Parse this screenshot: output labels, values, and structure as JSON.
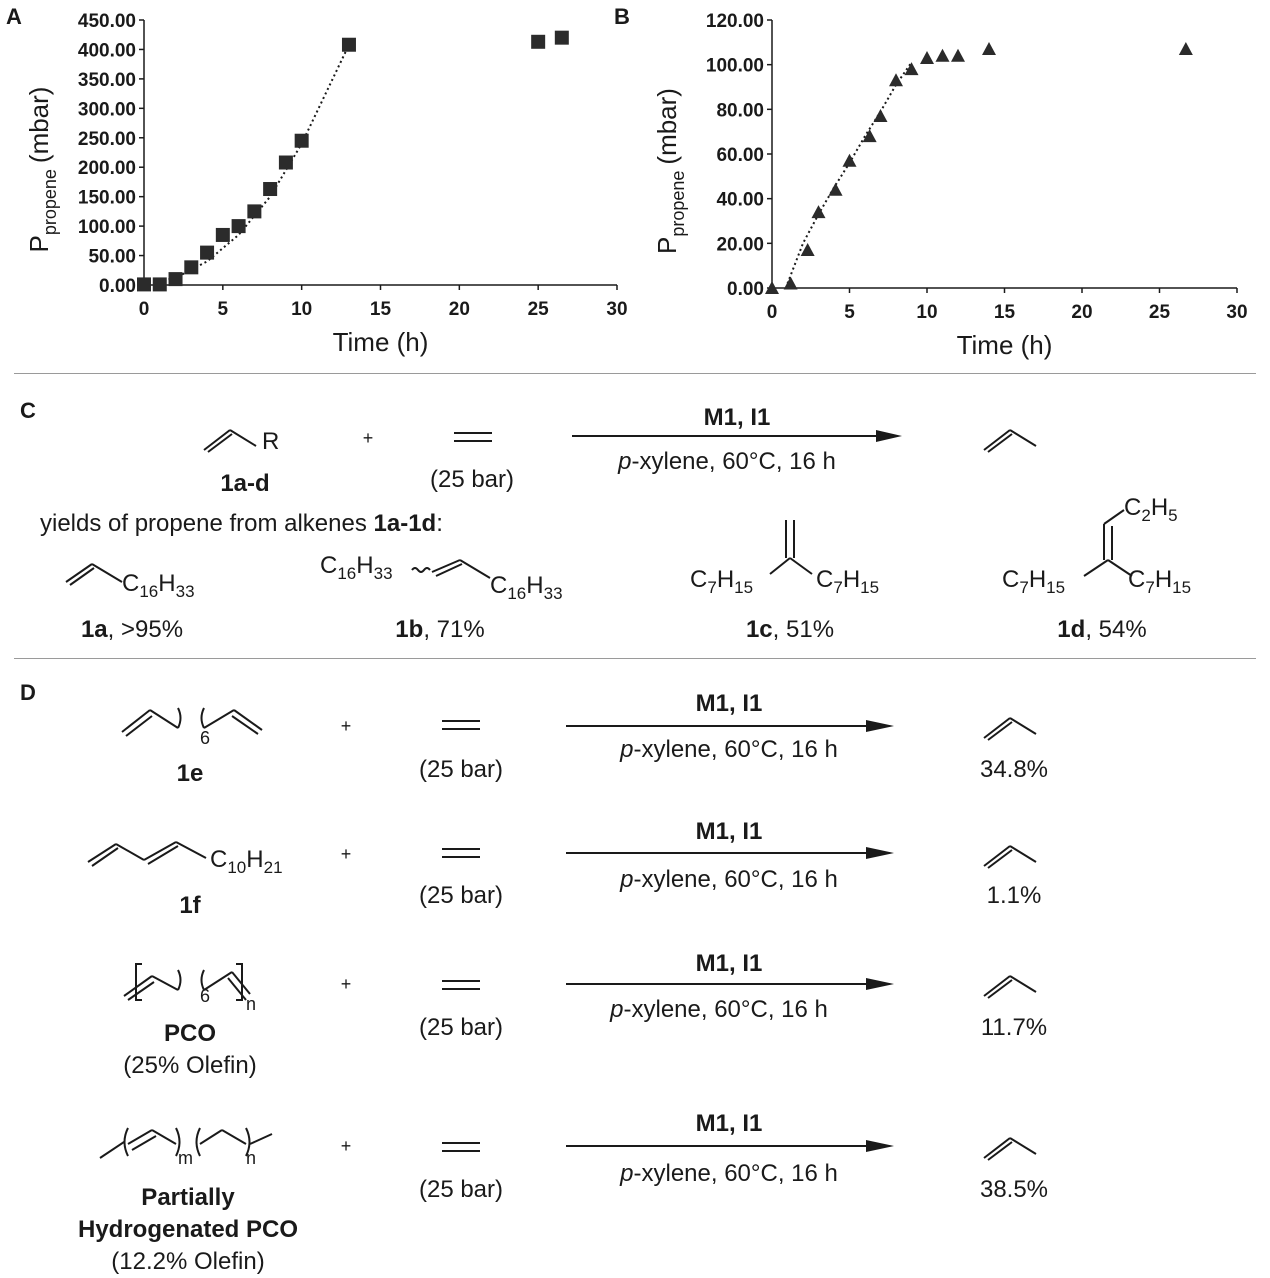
{
  "panels": {
    "a": "A",
    "b": "B",
    "c": "C",
    "d": "D"
  },
  "chart_data": [
    {
      "type": "scatter",
      "panel": "A",
      "xlabel": "Time (h)",
      "ylabel_main": "P",
      "ylabel_sub": "propene",
      "ylabel_unit": "(mbar)",
      "xlim": [
        0,
        30
      ],
      "ylim": [
        0,
        450
      ],
      "xticks": [
        "0",
        "5",
        "10",
        "15",
        "20",
        "25",
        "30"
      ],
      "yticks": [
        "0.00",
        "50.00",
        "100.00",
        "150.00",
        "200.00",
        "250.00",
        "300.00",
        "350.00",
        "400.00",
        "450.00"
      ],
      "marker": "square",
      "grid": false,
      "x": [
        0,
        1,
        2,
        3,
        4,
        5,
        6,
        7,
        8,
        9,
        10,
        13,
        25,
        26.5
      ],
      "y": [
        1,
        1,
        10,
        30,
        55,
        85,
        100,
        125,
        163,
        208,
        245,
        408,
        413,
        420
      ],
      "trend": {
        "style": "dotted",
        "x": [
          0,
          2,
          4,
          6,
          8,
          10,
          13
        ],
        "y": [
          0,
          12,
          40,
          85,
          150,
          240,
          408
        ]
      }
    },
    {
      "type": "scatter",
      "panel": "B",
      "xlabel": "Time (h)",
      "ylabel_main": "P",
      "ylabel_sub": "propene",
      "ylabel_unit": "(mbar)",
      "xlim": [
        0,
        30
      ],
      "ylim": [
        0,
        120
      ],
      "xticks": [
        "0",
        "5",
        "10",
        "15",
        "20",
        "25",
        "30"
      ],
      "yticks": [
        "0.00",
        "20.00",
        "40.00",
        "60.00",
        "80.00",
        "100.00",
        "120.00"
      ],
      "marker": "triangle",
      "grid": false,
      "x": [
        0,
        1.2,
        2.3,
        3,
        4.1,
        5,
        6.3,
        7,
        8,
        9,
        10,
        11,
        12,
        14,
        26.7
      ],
      "y": [
        0,
        2,
        17,
        34,
        44,
        57,
        68,
        77,
        93,
        98,
        103,
        104,
        104,
        107,
        107
      ],
      "trend": {
        "style": "dotted",
        "x": [
          1,
          2,
          3,
          4,
          5,
          6,
          7,
          8,
          9
        ],
        "y": [
          2,
          20,
          33,
          45,
          56,
          68,
          79,
          91,
          101
        ]
      }
    }
  ],
  "panel_c": {
    "reagent_R": "R",
    "reagent_label": "1a-d",
    "plus": "+",
    "pressure": "(25 bar)",
    "catalyst": "M1, I1",
    "conditions_p": "p",
    "conditions_rest": "-xylene, 60°C, 16 h",
    "yields_prefix": "yields of propene from alkenes ",
    "yields_bold": "1a-1d",
    "yields_suffix": ":",
    "c16": "C",
    "sub16": "16",
    "h33": "H",
    "sub33": "33",
    "c7": "C",
    "sub7": "7",
    "h15": "H",
    "sub15": "15",
    "c2": "C",
    "sub2": "2",
    "h5": "H",
    "sub5": "5",
    "yield_a_id": "1a",
    "yield_a_val": ", >95%",
    "yield_b_id": "1b",
    "yield_b_val": ", 71%",
    "yield_c_id": "1c",
    "yield_c_val": ", 51%",
    "yield_d_id": "1d",
    "yield_d_val": ", 54%"
  },
  "panel_d": {
    "rows": [
      {
        "id": "1e",
        "sub_n": "6",
        "yield": "34.8%"
      },
      {
        "id": "1f",
        "c10": "C",
        "sub10": "10",
        "h21": "H",
        "sub21": "21",
        "yield": "1.1%"
      },
      {
        "id": "PCO",
        "sub_n": "6",
        "n": "n",
        "note": "(25% Olefin)",
        "yield": "11.7%"
      },
      {
        "id_line1": "Partially",
        "id_line2": "Hydrogenated PCO",
        "m": "m",
        "n": "n",
        "note": "(12.2% Olefin)",
        "yield": "38.5%"
      }
    ],
    "plus": "+",
    "pressure": "(25 bar)",
    "catalyst": "M1, I1",
    "conditions_p": "p",
    "conditions_rest": "-xylene, 60°C, 16 h"
  }
}
